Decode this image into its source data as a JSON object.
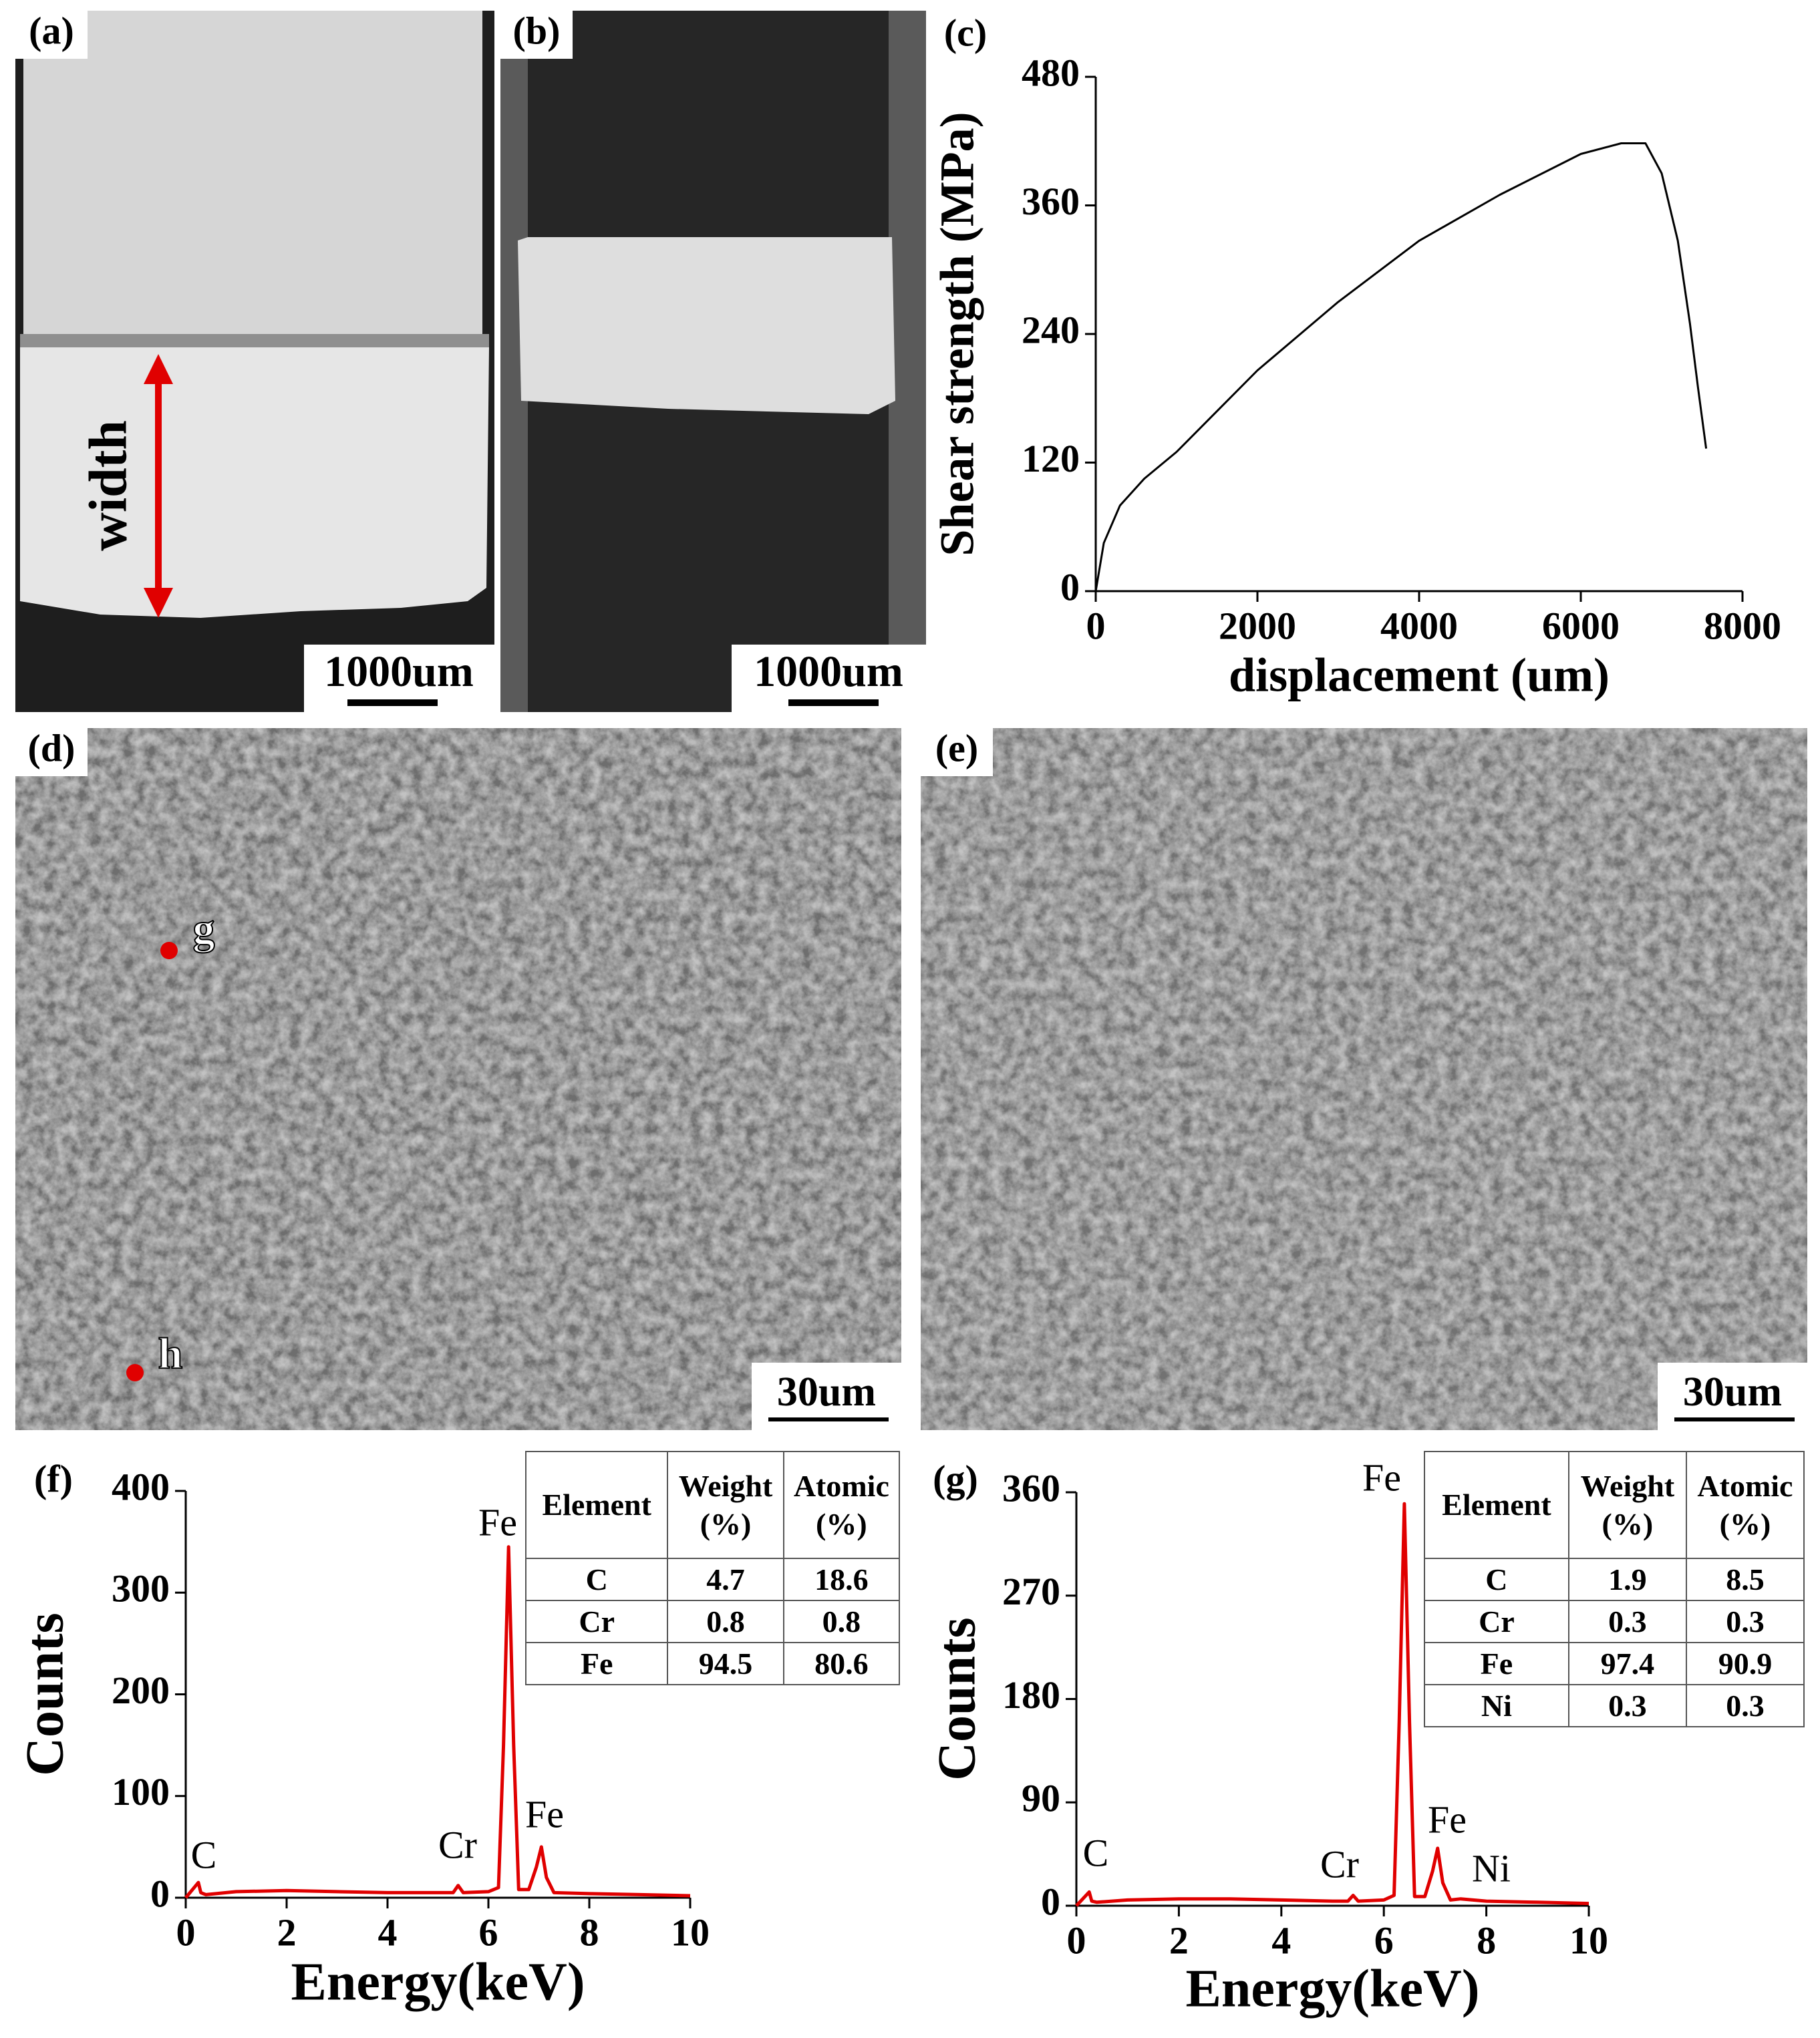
{
  "panels": {
    "a": {
      "label": "(a)",
      "annotation": "width",
      "scale_bar": "1000um"
    },
    "b": {
      "label": "(b)",
      "scale_bar": "1000um"
    },
    "d": {
      "label": "(d)",
      "points": [
        "g",
        "h"
      ],
      "scale_bar": "30um"
    },
    "e": {
      "label": "(e)",
      "scale_bar": "30um"
    }
  },
  "chart_data": [
    {
      "type": "line",
      "panel_label": "(c)",
      "x_label": "displacement (um)",
      "y_label": "Shear strength (MPa)",
      "color": "#000000",
      "x": [
        0,
        100,
        300,
        600,
        1000,
        2000,
        3000,
        4000,
        5000,
        6000,
        6500,
        6800,
        7000,
        7200,
        7350,
        7450,
        7550
      ],
      "values": [
        0,
        45,
        80,
        105,
        130,
        206,
        270,
        327,
        370,
        408,
        418,
        418,
        390,
        327,
        250,
        190,
        133
      ],
      "xlim": [
        0,
        8000
      ],
      "ylim": [
        0,
        480
      ],
      "xticks": [
        0,
        2000,
        4000,
        6000,
        8000
      ],
      "yticks": [
        0,
        120,
        240,
        360,
        480
      ]
    },
    {
      "type": "spectrum",
      "panel_label": "(f)",
      "x_label": "Energy(keV)",
      "y_label": "Counts",
      "color": "#e00000",
      "x": [
        0,
        0.25,
        0.3,
        0.4,
        1,
        2,
        3,
        4,
        5,
        5.3,
        5.4,
        5.5,
        6,
        6.2,
        6.3,
        6.4,
        6.5,
        6.6,
        6.8,
        6.95,
        7.05,
        7.15,
        7.3,
        8,
        9,
        10
      ],
      "values": [
        0,
        15,
        5,
        3,
        6,
        7,
        6,
        5,
        5,
        5,
        12,
        5,
        6,
        10,
        150,
        345,
        150,
        8,
        8,
        30,
        50,
        20,
        5,
        4,
        3,
        2
      ],
      "xlim": [
        0,
        10
      ],
      "ylim": [
        0,
        400
      ],
      "xticks": [
        0,
        2,
        4,
        6,
        8,
        10
      ],
      "yticks": [
        0,
        100,
        200,
        300,
        400
      ],
      "annotations": [
        "C",
        "Cr",
        "Fe",
        "Fe"
      ],
      "table": {
        "columns": [
          "Element",
          "Weight (%)",
          "Atomic (%)"
        ],
        "rows": [
          [
            "C",
            4.7,
            18.6
          ],
          [
            "Cr",
            0.8,
            0.8
          ],
          [
            "Fe",
            94.5,
            80.6
          ]
        ]
      }
    },
    {
      "type": "spectrum",
      "panel_label": "(g)",
      "x_label": "Energy(keV)",
      "y_label": "Counts",
      "color": "#e00000",
      "x": [
        0,
        0.25,
        0.3,
        0.4,
        1,
        2,
        3,
        4,
        5,
        5.3,
        5.4,
        5.5,
        6,
        6.2,
        6.3,
        6.4,
        6.5,
        6.6,
        6.8,
        6.95,
        7.05,
        7.15,
        7.3,
        7.5,
        8,
        9,
        10
      ],
      "values": [
        0,
        12,
        4,
        3,
        5,
        6,
        6,
        5,
        4,
        4,
        9,
        4,
        5,
        9,
        160,
        350,
        160,
        8,
        8,
        30,
        50,
        20,
        5,
        6,
        4,
        3,
        2
      ],
      "xlim": [
        0,
        10
      ],
      "ylim": [
        0,
        360
      ],
      "xticks": [
        0,
        2,
        4,
        6,
        8,
        10
      ],
      "yticks": [
        0,
        90,
        180,
        270,
        360
      ],
      "annotations": [
        "C",
        "Cr",
        "Fe",
        "Fe",
        "Ni"
      ],
      "table": {
        "columns": [
          "Element",
          "Weight (%)",
          "Atomic (%)"
        ],
        "rows": [
          [
            "C",
            1.9,
            8.5
          ],
          [
            "Cr",
            0.3,
            0.3
          ],
          [
            "Fe",
            97.4,
            90.9
          ],
          [
            "Ni",
            0.3,
            0.3
          ]
        ]
      }
    }
  ]
}
